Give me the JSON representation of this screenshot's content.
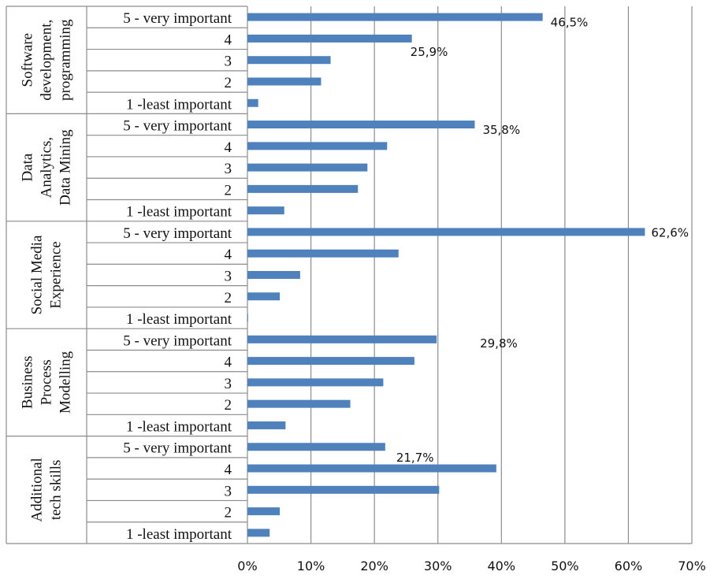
{
  "chart_data": {
    "type": "bar",
    "orientation": "horizontal",
    "grid": true,
    "xlim": [
      0,
      70
    ],
    "x_ticks": [
      "0%",
      "10%",
      "20%",
      "30%",
      "40%",
      "50%",
      "60%",
      "70%"
    ],
    "bar_color": "#4f81bd",
    "groups": [
      {
        "name": "Software development, programming",
        "name_lines": [
          "Software",
          "development,",
          "programming"
        ],
        "categories": [
          "5 - very important",
          "4",
          "3",
          "2",
          "1 -least important"
        ],
        "values": [
          46.5,
          25.9,
          13.1,
          11.6,
          1.7
        ],
        "labels": [
          "46,5%",
          "25,9%",
          "",
          "",
          ""
        ]
      },
      {
        "name": "Data Analytics, Data Mining",
        "name_lines": [
          "Data",
          "Analytics,",
          "Data Mining"
        ],
        "categories": [
          "5 - very important",
          "4",
          "3",
          "2",
          "1 -least important"
        ],
        "values": [
          35.8,
          22.0,
          18.9,
          17.4,
          5.8
        ],
        "labels": [
          "35,8%",
          "",
          "",
          "",
          ""
        ]
      },
      {
        "name": "Social Media Experience",
        "name_lines": [
          "Social Media",
          "Experience"
        ],
        "categories": [
          "5 - very important",
          "4",
          "3",
          "2",
          "1 -least important"
        ],
        "values": [
          62.6,
          23.8,
          8.3,
          5.1,
          0.1
        ],
        "labels": [
          "62,6%",
          "",
          "",
          "",
          ""
        ]
      },
      {
        "name": "Business Process Modelling",
        "name_lines": [
          "Business",
          "Process",
          "Modelling"
        ],
        "categories": [
          "5 - very important",
          "4",
          "3",
          "2",
          "1 -least important"
        ],
        "values": [
          29.8,
          26.3,
          21.4,
          16.2,
          6.0
        ],
        "labels": [
          "29,8%",
          "",
          "",
          "",
          ""
        ]
      },
      {
        "name": "Additional tech skills",
        "name_lines": [
          "Additional",
          "tech skills"
        ],
        "categories": [
          "5 - very important",
          "4",
          "3",
          "2",
          "1 -least important"
        ],
        "values": [
          21.7,
          39.2,
          30.2,
          5.1,
          3.5
        ],
        "labels": [
          "21,7%",
          "",
          "",
          "",
          ""
        ]
      }
    ]
  }
}
